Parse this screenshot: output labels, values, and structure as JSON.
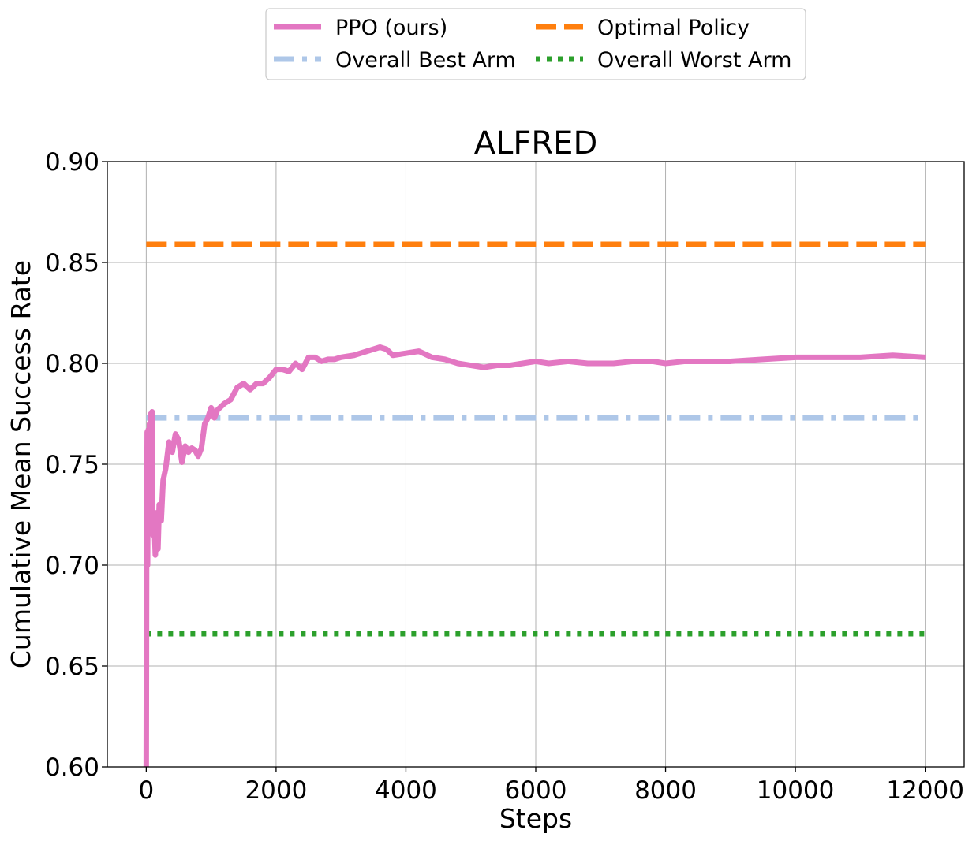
{
  "chart_data": {
    "type": "line",
    "title": "ALFRED",
    "xlabel": "Steps",
    "ylabel": "Cumulative Mean Success Rate",
    "xlim": [
      -600,
      12600
    ],
    "ylim": [
      0.6,
      0.9
    ],
    "xticks": [
      0,
      2000,
      4000,
      6000,
      8000,
      10000,
      12000
    ],
    "yticks": [
      0.6,
      0.65,
      0.7,
      0.75,
      0.8,
      0.85,
      0.9
    ],
    "xtick_labels": [
      "0",
      "2000",
      "4000",
      "6000",
      "8000",
      "10000",
      "12000"
    ],
    "ytick_labels": [
      "0.60",
      "0.65",
      "0.70",
      "0.75",
      "0.80",
      "0.85",
      "0.90"
    ],
    "grid": true,
    "legend_position": "top-center, above plot, 2 columns",
    "series": [
      {
        "name": "PPO (ours)",
        "color": "#e377c2",
        "style": "solid",
        "x": [
          0,
          5,
          10,
          15,
          20,
          30,
          40,
          50,
          60,
          70,
          80,
          90,
          100,
          120,
          140,
          160,
          180,
          200,
          230,
          260,
          300,
          350,
          400,
          450,
          500,
          550,
          600,
          650,
          700,
          750,
          800,
          850,
          900,
          950,
          1000,
          1050,
          1100,
          1200,
          1300,
          1400,
          1500,
          1600,
          1700,
          1800,
          1900,
          2000,
          2100,
          2200,
          2300,
          2400,
          2500,
          2600,
          2700,
          2800,
          2900,
          3000,
          3200,
          3400,
          3600,
          3700,
          3800,
          4000,
          4200,
          4400,
          4600,
          4800,
          5000,
          5200,
          5400,
          5600,
          5800,
          6000,
          6200,
          6500,
          6800,
          7000,
          7200,
          7500,
          7800,
          8000,
          8300,
          8600,
          9000,
          9500,
          10000,
          10500,
          11000,
          11500,
          12000
        ],
        "y": [
          0.6,
          0.7,
          0.73,
          0.766,
          0.7,
          0.767,
          0.72,
          0.77,
          0.731,
          0.775,
          0.724,
          0.776,
          0.715,
          0.724,
          0.705,
          0.726,
          0.708,
          0.73,
          0.722,
          0.742,
          0.748,
          0.761,
          0.756,
          0.765,
          0.762,
          0.751,
          0.759,
          0.756,
          0.758,
          0.757,
          0.754,
          0.758,
          0.77,
          0.773,
          0.778,
          0.773,
          0.777,
          0.78,
          0.782,
          0.788,
          0.79,
          0.787,
          0.79,
          0.79,
          0.793,
          0.797,
          0.797,
          0.796,
          0.8,
          0.797,
          0.803,
          0.803,
          0.801,
          0.802,
          0.802,
          0.803,
          0.804,
          0.806,
          0.808,
          0.807,
          0.804,
          0.805,
          0.806,
          0.803,
          0.802,
          0.8,
          0.799,
          0.798,
          0.799,
          0.799,
          0.8,
          0.801,
          0.8,
          0.801,
          0.8,
          0.8,
          0.8,
          0.801,
          0.801,
          0.8,
          0.801,
          0.801,
          0.801,
          0.802,
          0.803,
          0.803,
          0.803,
          0.804,
          0.803
        ]
      },
      {
        "name": "Optimal Policy",
        "color": "#ff7f0e",
        "style": "dashed",
        "x": [
          0,
          12000
        ],
        "y": [
          0.859,
          0.859
        ]
      },
      {
        "name": "Overall Best Arm",
        "color": "#aec7e8",
        "style": "dashdot",
        "x": [
          0,
          12000
        ],
        "y": [
          0.773,
          0.773
        ]
      },
      {
        "name": "Overall Worst Arm",
        "color": "#2ca02c",
        "style": "dotted",
        "x": [
          0,
          12000
        ],
        "y": [
          0.666,
          0.666
        ]
      }
    ]
  },
  "legend_order": [
    0,
    2,
    1,
    3
  ]
}
